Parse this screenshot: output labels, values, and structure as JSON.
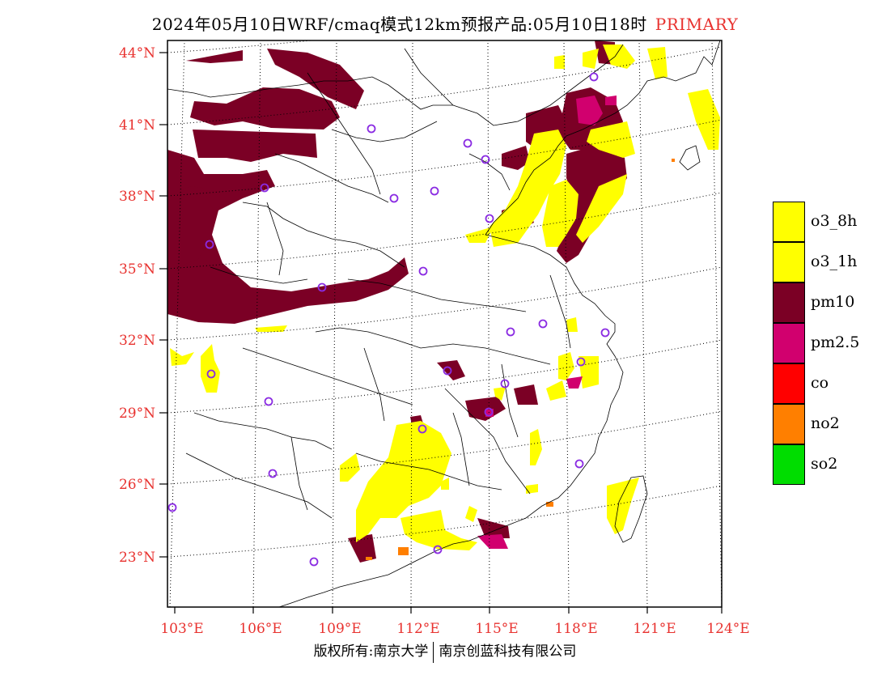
{
  "title": {
    "main": "2024年05月10日WRF/cmaq模式12km预报产品:05月10日18时",
    "variable": "PRIMARY"
  },
  "copyright": {
    "left": "版权所有:南京大学",
    "right": "南京创蓝科技有限公司"
  },
  "colors": {
    "axis_labels": "#e8322f",
    "o3_8h": "#ffff00",
    "o3_1h": "#ffff00",
    "pm10": "#7b0025",
    "pm2_5": "#d1006e",
    "co": "#ff0000",
    "no2": "#ff7f00",
    "so2": "#00dd00",
    "station_marker": "#8a2be2"
  },
  "map": {
    "lon_range": [
      102.5,
      124
    ],
    "lat_range": [
      21,
      44.5
    ],
    "lon_ticks": [
      "103°E",
      "106°E",
      "109°E",
      "112°E",
      "115°E",
      "118°E",
      "121°E",
      "124°E"
    ],
    "lat_ticks": [
      "23°N",
      "26°N",
      "29°N",
      "32°N",
      "35°N",
      "38°N",
      "41°N",
      "44°N"
    ]
  },
  "legend": [
    {
      "label": "o3_8h",
      "color": "#ffff00"
    },
    {
      "label": "o3_1h",
      "color": "#ffff00"
    },
    {
      "label": "pm10",
      "color": "#7b0025"
    },
    {
      "label": "pm2.5",
      "color": "#d1006e"
    },
    {
      "label": "co",
      "color": "#ff0000"
    },
    {
      "label": "no2",
      "color": "#ff7f00"
    },
    {
      "label": "so2",
      "color": "#00dd00"
    }
  ]
}
